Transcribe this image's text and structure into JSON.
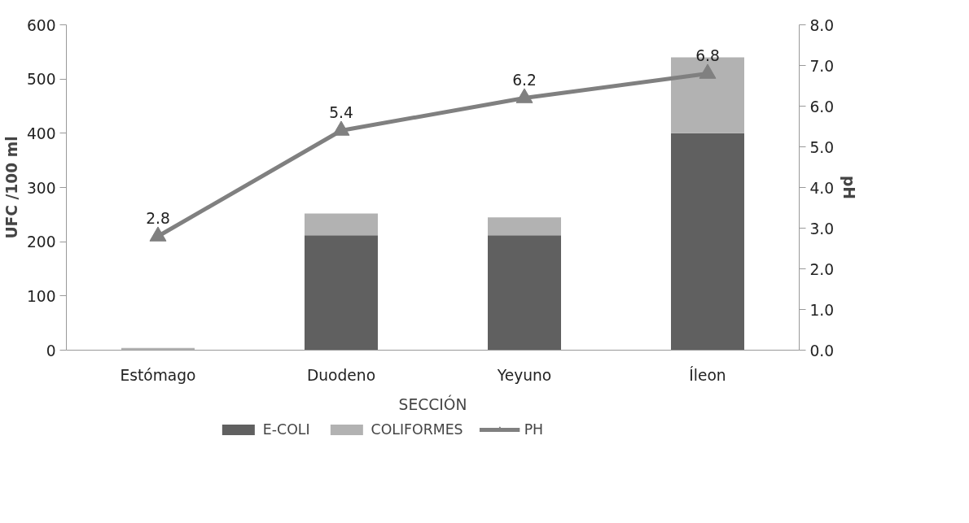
{
  "chart_data": {
    "type": "bar",
    "stacked": true,
    "xlabel": "SECCIÓN",
    "ylabel": "UFC /100 ml",
    "y2label": "pH",
    "categories": [
      "Estómago",
      "Duodeno",
      "Yeyuno",
      "Íleon"
    ],
    "series": [
      {
        "name": "E-COLI",
        "color": "#606060",
        "values": [
          0,
          212,
          212,
          400
        ]
      },
      {
        "name": "COLIFORMES",
        "color": "#b2b2b2",
        "values": [
          4,
          40,
          33,
          140
        ]
      },
      {
        "name": "PH",
        "color": "#808080",
        "type": "line",
        "axis": "y2",
        "marker": "triangle",
        "data_labels": true,
        "values": [
          2.8,
          5.4,
          6.2,
          6.8
        ]
      }
    ],
    "ylim": [
      0,
      600
    ],
    "yticks": [
      0,
      100,
      200,
      300,
      400,
      500,
      600
    ],
    "y2lim": [
      0,
      8
    ],
    "y2ticks": [
      {
        "value": 0,
        "label": "0.0"
      },
      {
        "value": 1,
        "label": "1.0"
      },
      {
        "value": 2,
        "label": "2.0"
      },
      {
        "value": 3,
        "label": "3.0"
      },
      {
        "value": 4,
        "label": "4.0"
      },
      {
        "value": 5,
        "label": "5.0"
      },
      {
        "value": 6,
        "label": "6.0"
      },
      {
        "value": 7,
        "label": "7.0"
      },
      {
        "value": 8,
        "label": "8.0"
      }
    ],
    "grid": false,
    "legend": "bottom"
  }
}
